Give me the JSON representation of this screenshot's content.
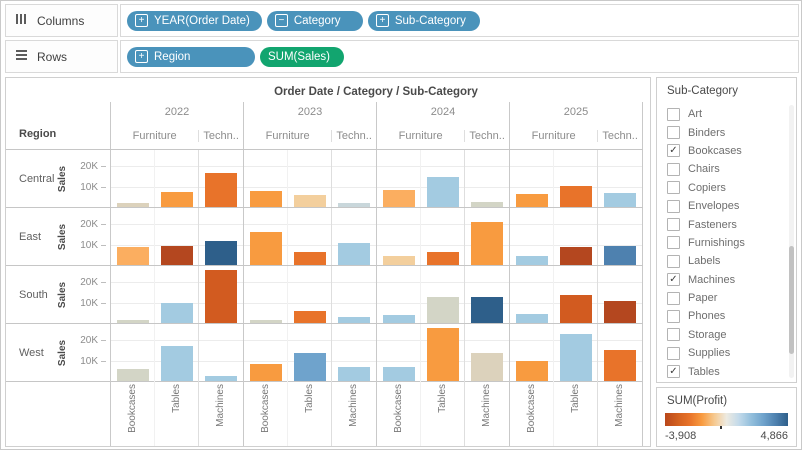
{
  "shelves": {
    "columns": {
      "label": "Columns",
      "pills": [
        {
          "label": "YEAR(Order Date)",
          "type": "dimension",
          "icon": "plus",
          "min_width": 130
        },
        {
          "label": "Category",
          "type": "dimension",
          "icon": "minus",
          "min_width": 96
        },
        {
          "label": "Sub-Category",
          "type": "dimension",
          "icon": "plus",
          "min_width": 112
        }
      ]
    },
    "rows": {
      "label": "Rows",
      "pills": [
        {
          "label": "Region",
          "type": "dimension",
          "icon": "plus",
          "min_width": 128
        },
        {
          "label": "SUM(Sales)",
          "type": "measure",
          "icon": "none",
          "min_width": 84
        }
      ]
    }
  },
  "colors": {
    "dimension_pill": "#4A93BB",
    "measure_pill": "#12A56F",
    "palette": {
      "darkred": "#B4471F",
      "redorange": "#D25B20",
      "darkorange": "#E8732A",
      "orange": "#F89B40",
      "lightorange": "#FBAE60",
      "tan": "#F3CF9D",
      "palebeige": "#DCD2BC",
      "palegray": "#D3D5C6",
      "palebluegray": "#C9D7DB",
      "lightblue": "#A3CBE1",
      "mediumblue": "#6FA3CC",
      "steelblue": "#4E81AF",
      "darkblue": "#2E5F8A"
    }
  },
  "chart_data": {
    "type": "bar",
    "title": "Order Date / Category / Sub-Category",
    "row_header": "Region",
    "y_axis_title": "Sales",
    "y_ticks": [
      {
        "label": "20K",
        "value": 20000
      },
      {
        "label": "10K",
        "value": 10000
      }
    ],
    "ylim": [
      0,
      28000
    ],
    "years": [
      "2022",
      "2023",
      "2024",
      "2025"
    ],
    "categories": [
      "Furniture",
      "Techn.."
    ],
    "subcategories_by_category": {
      "Furniture": [
        "Bookcases",
        "Tables"
      ],
      "Techn..": [
        "Machines"
      ]
    },
    "regions": [
      "Central",
      "East",
      "South",
      "West"
    ],
    "values": {
      "Central": {
        "2022": {
          "Bookcases": {
            "sales": 2000,
            "color": "palebeige"
          },
          "Tables": {
            "sales": 7500,
            "color": "orange"
          },
          "Machines": {
            "sales": 16500,
            "color": "darkorange"
          }
        },
        "2023": {
          "Bookcases": {
            "sales": 8000,
            "color": "orange"
          },
          "Tables": {
            "sales": 6000,
            "color": "tan"
          },
          "Machines": {
            "sales": 2000,
            "color": "palebluegray"
          }
        },
        "2024": {
          "Bookcases": {
            "sales": 8500,
            "color": "lightorange"
          },
          "Tables": {
            "sales": 14500,
            "color": "lightblue"
          },
          "Machines": {
            "sales": 2500,
            "color": "palegray"
          }
        },
        "2025": {
          "Bookcases": {
            "sales": 6500,
            "color": "orange"
          },
          "Tables": {
            "sales": 10500,
            "color": "darkorange"
          },
          "Machines": {
            "sales": 7000,
            "color": "lightblue"
          }
        }
      },
      "East": {
        "2022": {
          "Bookcases": {
            "sales": 9000,
            "color": "lightorange"
          },
          "Tables": {
            "sales": 9500,
            "color": "darkred"
          },
          "Machines": {
            "sales": 12000,
            "color": "darkblue"
          }
        },
        "2023": {
          "Bookcases": {
            "sales": 16000,
            "color": "orange"
          },
          "Tables": {
            "sales": 6500,
            "color": "darkorange"
          },
          "Machines": {
            "sales": 11000,
            "color": "lightblue"
          }
        },
        "2024": {
          "Bookcases": {
            "sales": 4500,
            "color": "tan"
          },
          "Tables": {
            "sales": 6500,
            "color": "darkorange"
          },
          "Machines": {
            "sales": 21000,
            "color": "orange"
          }
        },
        "2025": {
          "Bookcases": {
            "sales": 4500,
            "color": "lightblue"
          },
          "Tables": {
            "sales": 9000,
            "color": "darkred"
          },
          "Machines": {
            "sales": 9500,
            "color": "steelblue"
          }
        }
      },
      "South": {
        "2022": {
          "Bookcases": {
            "sales": 1500,
            "color": "palegray"
          },
          "Tables": {
            "sales": 10000,
            "color": "lightblue"
          },
          "Machines": {
            "sales": 26000,
            "color": "redorange"
          }
        },
        "2023": {
          "Bookcases": {
            "sales": 1500,
            "color": "palegray"
          },
          "Tables": {
            "sales": 6000,
            "color": "darkorange"
          },
          "Machines": {
            "sales": 3000,
            "color": "lightblue"
          }
        },
        "2024": {
          "Bookcases": {
            "sales": 4000,
            "color": "lightblue"
          },
          "Tables": {
            "sales": 13000,
            "color": "palegray"
          },
          "Machines": {
            "sales": 13000,
            "color": "darkblue"
          }
        },
        "2025": {
          "Bookcases": {
            "sales": 4500,
            "color": "lightblue"
          },
          "Tables": {
            "sales": 14000,
            "color": "redorange"
          },
          "Machines": {
            "sales": 11000,
            "color": "darkred"
          }
        }
      },
      "West": {
        "2022": {
          "Bookcases": {
            "sales": 6000,
            "color": "palegray"
          },
          "Tables": {
            "sales": 17000,
            "color": "lightblue"
          },
          "Machines": {
            "sales": 2500,
            "color": "lightblue"
          }
        },
        "2023": {
          "Bookcases": {
            "sales": 8500,
            "color": "orange"
          },
          "Tables": {
            "sales": 14000,
            "color": "mediumblue"
          },
          "Machines": {
            "sales": 7000,
            "color": "lightblue"
          }
        },
        "2024": {
          "Bookcases": {
            "sales": 7000,
            "color": "lightblue"
          },
          "Tables": {
            "sales": 26000,
            "color": "orange"
          },
          "Machines": {
            "sales": 14000,
            "color": "palebeige"
          }
        },
        "2025": {
          "Bookcases": {
            "sales": 10000,
            "color": "orange"
          },
          "Tables": {
            "sales": 23000,
            "color": "lightblue"
          },
          "Machines": {
            "sales": 15000,
            "color": "darkorange"
          }
        }
      }
    },
    "legend_position": "right"
  },
  "filter_panel": {
    "title": "Sub-Category",
    "items": [
      {
        "label": "Art",
        "checked": false
      },
      {
        "label": "Binders",
        "checked": false
      },
      {
        "label": "Bookcases",
        "checked": true
      },
      {
        "label": "Chairs",
        "checked": false
      },
      {
        "label": "Copiers",
        "checked": false
      },
      {
        "label": "Envelopes",
        "checked": false
      },
      {
        "label": "Fasteners",
        "checked": false
      },
      {
        "label": "Furnishings",
        "checked": false
      },
      {
        "label": "Labels",
        "checked": false
      },
      {
        "label": "Machines",
        "checked": true
      },
      {
        "label": "Paper",
        "checked": false
      },
      {
        "label": "Phones",
        "checked": false
      },
      {
        "label": "Storage",
        "checked": false
      },
      {
        "label": "Supplies",
        "checked": false
      },
      {
        "label": "Tables",
        "checked": true
      }
    ]
  },
  "legend": {
    "title": "SUM(Profit)",
    "min_label": "-3,908",
    "max_label": "4,866",
    "zero_pos_pct": 44.5,
    "gradient": [
      "#B9471B",
      "#D2601F",
      "#E8732A",
      "#F89B40",
      "#F6C98F",
      "#EDEAE1",
      "#C3DAEA",
      "#93BFDC",
      "#6FA3CC",
      "#4E81AF",
      "#2E5F8A"
    ]
  }
}
